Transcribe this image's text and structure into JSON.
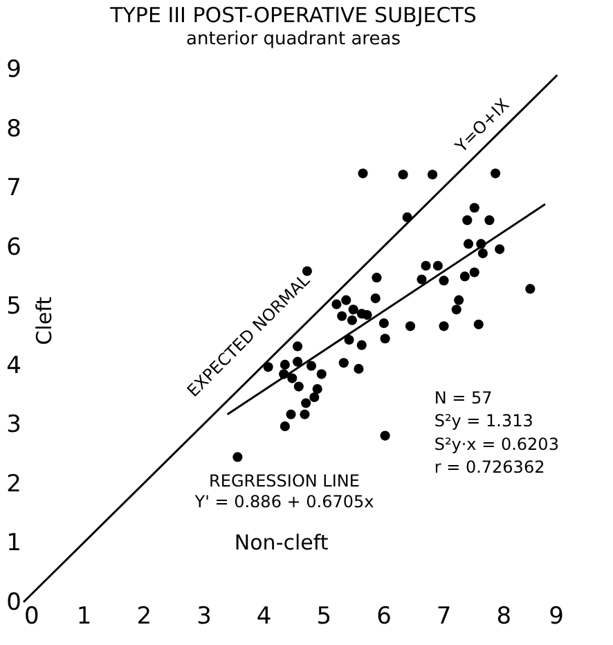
{
  "chart_data": {
    "type": "scatter",
    "title": "TYPE III POST-OPERATIVE SUBJECTS",
    "subtitle": "anterior quadrant areas",
    "xlabel": "Non-cleft",
    "ylabel": "Cleft",
    "xlim": [
      0,
      9
    ],
    "ylim": [
      0,
      9
    ],
    "xticks": [
      0,
      1,
      2,
      3,
      4,
      5,
      6,
      7,
      8,
      9
    ],
    "yticks": [
      0,
      1,
      2,
      3,
      4,
      5,
      6,
      7,
      8,
      9
    ],
    "grid": false,
    "series": [
      {
        "color": "#000000",
        "marker": "circle",
        "x": [
          5.66,
          6.33,
          6.82,
          7.87,
          4.73,
          5.89,
          5.87,
          6.4,
          5.22,
          5.38,
          5.31,
          5.48,
          5.5,
          5.64,
          5.73,
          6.01,
          6.03,
          5.64,
          5.43,
          4.57,
          5.34,
          5.59,
          4.8,
          4.57,
          4.36,
          4.08,
          4.48,
          4.97,
          6.45,
          7.52,
          7.4,
          7.77,
          7.42,
          7.63,
          7.66,
          7.94,
          6.71,
          6.91,
          6.64,
          7.01,
          7.36,
          7.52,
          8.45,
          7.26,
          7.22,
          7.01,
          7.59,
          4.34,
          4.59,
          4.9,
          4.85,
          4.71,
          4.46,
          4.69,
          4.36,
          3.57,
          6.03
        ],
        "values": [
          7.24,
          7.22,
          7.22,
          7.24,
          5.59,
          5.48,
          5.13,
          6.5,
          5.03,
          5.1,
          4.83,
          4.76,
          4.94,
          4.87,
          4.85,
          4.71,
          4.45,
          4.34,
          4.43,
          4.32,
          4.04,
          3.94,
          3.99,
          4.06,
          4.01,
          3.97,
          3.78,
          3.85,
          4.66,
          6.66,
          6.45,
          6.45,
          6.05,
          6.05,
          5.89,
          5.96,
          5.68,
          5.68,
          5.45,
          5.43,
          5.5,
          5.57,
          5.29,
          5.1,
          4.94,
          4.66,
          4.69,
          3.85,
          3.64,
          3.6,
          3.46,
          3.36,
          3.17,
          3.17,
          2.97,
          2.45,
          2.81
        ]
      },
      {
        "type": "line",
        "color": "#000000",
        "x": [
          0,
          8.9
        ],
        "values": [
          0,
          8.9
        ]
      },
      {
        "type": "line",
        "color": "#000000",
        "x": [
          3.4,
          8.7
        ],
        "values": [
          3.17,
          6.72
        ]
      }
    ],
    "annotations": [
      "EXPECTED NORMAL",
      "Y=O+IX",
      "REGRESSION LINE",
      "Y' = 0.886 + 0.6705x",
      "N = 57",
      "S²y = 1.313",
      "S²y·x = 0.6203",
      "r = 0.726362"
    ]
  }
}
